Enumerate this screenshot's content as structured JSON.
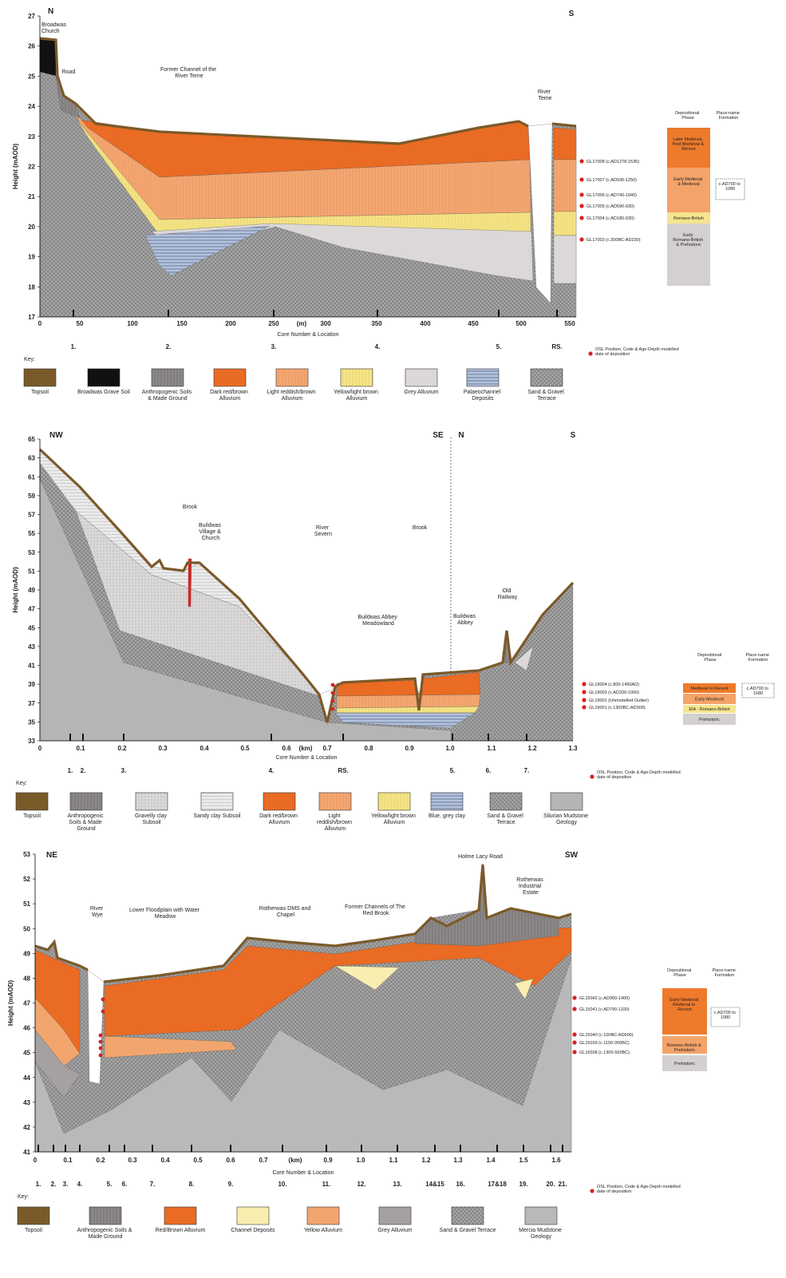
{
  "panels": [
    {
      "y_axis_label": "Height (mAOD)",
      "yticks": [
        "17",
        "18",
        "19",
        "20",
        "21",
        "22",
        "23",
        "24",
        "25",
        "26",
        "27"
      ],
      "xticks": [
        "0",
        "50",
        "100",
        "150",
        "200",
        "250",
        "(m)",
        "300",
        "350",
        "400",
        "450",
        "500",
        "550"
      ],
      "x_axis_label": "Core Number & Location",
      "cores": [
        "1.",
        "2.",
        "3.",
        "4.",
        "5.",
        "RS."
      ],
      "annotations": [
        "N",
        "S",
        "Broadwas Church",
        "Road",
        "Former Channel of the River Teme",
        "River Teme"
      ],
      "samples": [
        "GL17008 (c.AD1278-1535)",
        "GL17007 (c.AD930-1250)",
        "GL17006 (c.AD740-1040)",
        "GL17005 (c.AD590-930)",
        "GL17004 (c.AD180-930)",
        "GL17003 (c.300BC-AD230)"
      ],
      "phase_header": [
        "Depositional Phase",
        "Place-name Formation"
      ],
      "phases": [
        "Later Medieval, Post Medieval & Recent",
        "Early Medieval & Medieval",
        "Romano-British",
        "Early Romano-British & Prehistoric"
      ],
      "date_range": "c.AD700 to 1080",
      "key_title": "Key:",
      "key": [
        "Topsoil",
        "Broadwas Grave Soil",
        "Anthropogenic Soils & Made Ground",
        "Dark red/brown Alluvium",
        "Light reddish/brown Alluvium",
        "Yellow/light brown Alluvium",
        "Grey Alluvium",
        "Palaeochannel Deposits",
        "Sand & Gravel Terrace"
      ],
      "osl_note": "OSL Position, Code & Age-Depth modelled date of deposition"
    },
    {
      "y_axis_label": "Height (mAOD)",
      "yticks": [
        "33",
        "35",
        "37",
        "39",
        "41",
        "43",
        "45",
        "47",
        "49",
        "51",
        "53",
        "55",
        "57",
        "59",
        "61",
        "63",
        "65"
      ],
      "xticks": [
        "0",
        "0.1",
        "0.2",
        "0.3",
        "0.4",
        "0.5",
        "0.6",
        "(km)",
        "0.7",
        "0.8",
        "0.9",
        "1.0",
        "1.1",
        "1.2",
        "1.3"
      ],
      "x_axis_label": "Core Number & Location",
      "cores": [
        "1.",
        "2.",
        "3.",
        "4.",
        "RS.",
        "5.",
        "6.",
        "7."
      ],
      "annotations": [
        "NW",
        "SE",
        "N",
        "S",
        "Brook",
        "Buildwas Village & Church",
        "River Severn",
        "Brook",
        "Buildwas Abbey Meadowland",
        "Buildwas Abbey",
        "Old Railway"
      ],
      "samples": [
        "GL19004 (c.800-1490AD)",
        "GL19003 (c.AD200-1000)",
        "GL19002 (Unmodelled Outlier)",
        "GL19001 (c.1300BC-AD300)"
      ],
      "phase_header": [
        "Depositional Phase",
        "Place-name Formation"
      ],
      "phases": [
        "Medieval to Recent",
        "Early Medieval",
        "EIA - Romano-British",
        "Prehistoric"
      ],
      "date_range": "c.AD700 to 1080",
      "key_title": "Key:",
      "key": [
        "Topsoil",
        "Anthropogenic Soils & Made Ground",
        "Gravelly clay Subsoil",
        "Sandy clay Subsoil",
        "Dark red/brown Alluvium",
        "Light reddish/brown Alluvium",
        "Yellow/light brown Alluvium",
        "Blue, grey clay",
        "Sand & Gravel Terrace",
        "Silurian Mudstone Geology"
      ],
      "osl_note": "OSL Position, Code & Age-Depth modelled date of deposition"
    },
    {
      "y_axis_label": "Height (mAOD)",
      "yticks": [
        "41",
        "42",
        "43",
        "44",
        "45",
        "46",
        "47",
        "48",
        "49",
        "50",
        "51",
        "52",
        "53"
      ],
      "xticks": [
        "0",
        "0.1",
        "0.2",
        "0.3",
        "0.4",
        "0.5",
        "0.6",
        "0.7",
        "(km)",
        "0.9",
        "1.0",
        "1.1",
        "1.2",
        "1.3",
        "1.4",
        "1.5",
        "1.6"
      ],
      "x_axis_label": "Core Number & Location",
      "cores": [
        "1.",
        "2.",
        "3.",
        "4.",
        "5.",
        "6.",
        "7.",
        "8.",
        "9.",
        "10.",
        "11.",
        "12.",
        "13.",
        "14&15",
        "16.",
        "17&18",
        "19.",
        "20.",
        "21."
      ],
      "annotations": [
        "NE",
        "SW",
        "River Wye",
        "Lower Floodplain with Water Meadow",
        "Rotherwas DMS and Chapel",
        "Former Channels of The Red Brook",
        "Holme Lacy Road",
        "Rotherwas Industrial Estate"
      ],
      "samples": [
        "GL15042 (c.AD950-1400)",
        "GL15041 (c.AD790-1100)",
        "GL15040 (c.100BC-AD600)",
        "GL15039 (c.1150-350BC)",
        "GL15038 (c.1300-500BC)"
      ],
      "phase_header": [
        "Depositional Phase",
        "Place-name Formation"
      ],
      "phases": [
        "Early Medieval Medieval to Recent",
        "Romano-British & Prehistoric",
        "Prehistoric"
      ],
      "date_range": "c.AD700 to 1080",
      "key_title": "Key:",
      "key": [
        "Topsoil",
        "Anthropogenic Soils & Made Ground",
        "Red/Brown Alluvium",
        "Channel Deposits",
        "Yellow Alluvium",
        "Grey Alluvium",
        "Sand & Gravel Terrace",
        "Mercia Mudstone Geology"
      ],
      "osl_note": "OSL Position, Code & Age-Depth modelled date of deposition"
    }
  ]
}
